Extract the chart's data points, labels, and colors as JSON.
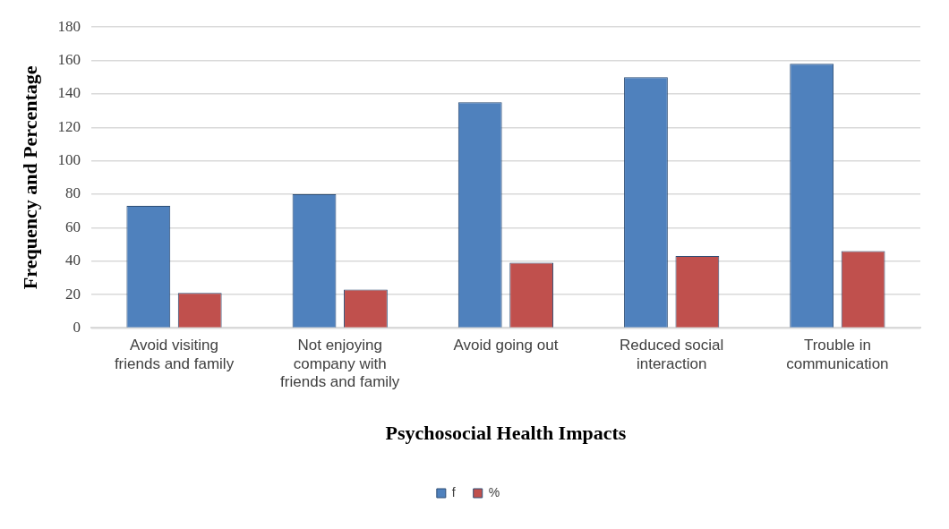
{
  "chart_data": {
    "type": "bar",
    "xlabel": "Psychosocial Health Impacts",
    "ylabel": "Frequency and Percentage",
    "categories": [
      "Avoid visiting friends and family",
      "Not enjoying company with friends and family",
      "Avoid going out",
      "Reduced social interaction",
      "Trouble in communication"
    ],
    "series": [
      {
        "name": "f",
        "color": "#4f81bd",
        "values": [
          73,
          80,
          135,
          150,
          158
        ]
      },
      {
        "name": "%",
        "color": "#c0504d",
        "values": [
          21,
          23,
          39,
          43,
          46
        ]
      }
    ],
    "ylim": [
      0,
      180
    ],
    "yticks": [
      0,
      20,
      40,
      60,
      80,
      100,
      120,
      140,
      160,
      180
    ],
    "grid": "y",
    "legend": "bottom"
  }
}
